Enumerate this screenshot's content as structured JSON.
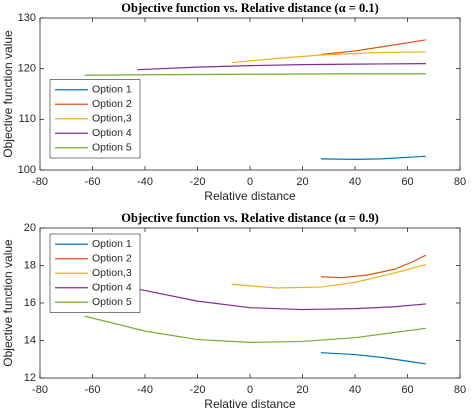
{
  "chart_data": [
    {
      "type": "line",
      "title": "Objective function vs. Relative distance (α = 0.1)",
      "xlabel": "Relative distance",
      "ylabel": "Objective function value",
      "xlim": [
        -80,
        80
      ],
      "xticks": [
        -80,
        -60,
        -40,
        -20,
        0,
        20,
        40,
        60,
        80
      ],
      "ylim": [
        100,
        130
      ],
      "yticks": [
        100,
        110,
        120,
        130
      ],
      "legend": "southwest",
      "series": [
        {
          "name": "Option 1",
          "color": "#0072BD",
          "x": [
            27,
            40,
            50,
            60,
            67
          ],
          "values": [
            102.2,
            102.1,
            102.2,
            102.5,
            102.7
          ]
        },
        {
          "name": "Option 2",
          "color": "#D95319",
          "x": [
            27,
            40,
            50,
            60,
            67
          ],
          "values": [
            122.8,
            123.5,
            124.3,
            125.1,
            125.7
          ]
        },
        {
          "name": "Option,3",
          "color": "#EDB120",
          "x": [
            -7,
            10,
            27,
            40,
            50,
            67
          ],
          "values": [
            121.2,
            122.0,
            122.7,
            123.0,
            123.2,
            123.3
          ]
        },
        {
          "name": "Option 4",
          "color": "#7E2F8E",
          "x": [
            -43,
            -20,
            0,
            20,
            40,
            67
          ],
          "values": [
            119.8,
            120.3,
            120.6,
            120.8,
            120.9,
            121.0
          ]
        },
        {
          "name": "Option 5",
          "color": "#77AC30",
          "x": [
            -63,
            -40,
            0,
            40,
            67
          ],
          "values": [
            118.7,
            118.8,
            118.9,
            119.0,
            119.0
          ]
        }
      ]
    },
    {
      "type": "line",
      "title": "Objective function vs. Relative distance (α = 0.9)",
      "xlabel": "Relative distance",
      "ylabel": "Objective function value",
      "xlim": [
        -80,
        80
      ],
      "xticks": [
        -80,
        -60,
        -40,
        -20,
        0,
        20,
        40,
        60,
        80
      ],
      "ylim": [
        12,
        20
      ],
      "yticks": [
        12,
        14,
        16,
        18,
        20
      ],
      "legend": "northwest",
      "series": [
        {
          "name": "Option 1",
          "color": "#0072BD",
          "x": [
            27,
            40,
            50,
            60,
            67
          ],
          "values": [
            13.35,
            13.25,
            13.1,
            12.9,
            12.75
          ]
        },
        {
          "name": "Option 2",
          "color": "#D95319",
          "x": [
            27,
            35,
            45,
            55,
            62,
            67
          ],
          "values": [
            17.4,
            17.35,
            17.5,
            17.8,
            18.2,
            18.55
          ]
        },
        {
          "name": "Option,3",
          "color": "#EDB120",
          "x": [
            -7,
            10,
            27,
            40,
            55,
            67
          ],
          "values": [
            17.0,
            16.8,
            16.85,
            17.1,
            17.6,
            18.05
          ]
        },
        {
          "name": "Option 4",
          "color": "#7E2F8E",
          "x": [
            -43,
            -20,
            0,
            20,
            40,
            55,
            67
          ],
          "values": [
            16.75,
            16.1,
            15.75,
            15.65,
            15.7,
            15.8,
            15.95
          ]
        },
        {
          "name": "Option 5",
          "color": "#77AC30",
          "x": [
            -63,
            -40,
            -20,
            0,
            20,
            40,
            67
          ],
          "values": [
            15.3,
            14.5,
            14.05,
            13.9,
            13.95,
            14.15,
            14.65
          ]
        }
      ]
    }
  ]
}
